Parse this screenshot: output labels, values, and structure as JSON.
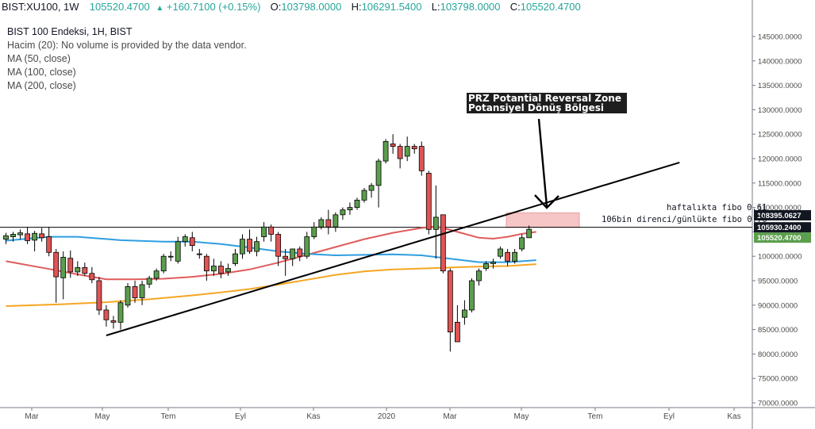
{
  "header": {
    "symbol": "BIST:XU100, 1W",
    "last": "105520.4700",
    "change": "+160.7100 (+0.15%)",
    "open_label": "O:",
    "open": "103798.0000",
    "high_label": "H:",
    "high": "106291.5400",
    "low_label": "L:",
    "low": "103798.0000",
    "close_label": "C:",
    "close": "105520.4700"
  },
  "legend": {
    "title": "BIST 100 Endeksi, 1H, BIST",
    "volume": "Hacim (20): No volume is provided by the data vendor.",
    "ma50": "MA (50, close)",
    "ma100": "MA (100, close)",
    "ma200": "MA (200, close)"
  },
  "annotations": {
    "prz_line1": "PRZ Potantial Reversal Zone",
    "prz_line2": "Potansiyel Dönüş Bölgesi",
    "fibo1": "haftalıkta fibo 0.61",
    "fibo2": "106bin direnci/günlükte fibo 0.76"
  },
  "colors": {
    "up": "#26a69a",
    "up_candle": "#5b9e4d",
    "down_candle": "#e05454",
    "ma50": "#e05c5c",
    "ma100": "#2f9ee0",
    "ma200": "#f5a623",
    "zone": "#f6c5c5"
  },
  "chart_data": {
    "type": "candlestick",
    "y_axis_ticks": [
      "145000.0000",
      "140000.0000",
      "135000.0000",
      "130000.0000",
      "125000.0000",
      "120000.0000",
      "115000.0000",
      "110000.0000",
      "105000.0000",
      "100000.0000",
      "95000.0000",
      "90000.0000",
      "85000.0000",
      "80000.0000",
      "75000.0000",
      "70000.0000"
    ],
    "ylim": [
      69000,
      149000
    ],
    "x_axis_labels": [
      "Mar",
      "May",
      "Tem",
      "Eyl",
      "Kas",
      "2020",
      "Mar",
      "May",
      "Tem",
      "Eyl",
      "Kas"
    ],
    "price_tags": [
      {
        "label": "108395.0627",
        "value": 108395.06,
        "style": "dark"
      },
      {
        "label": "105930.2400",
        "value": 105930.24,
        "style": "dark"
      },
      {
        "label": "105520.4700",
        "value": 105520.47,
        "style": "green"
      }
    ],
    "horizontal_lines": [
      105930.24
    ],
    "zone": {
      "y_low": 105930,
      "y_high": 108900
    },
    "candles": [
      {
        "o": 103500,
        "h": 104800,
        "l": 102500,
        "c": 104200
      },
      {
        "o": 104000,
        "h": 105000,
        "l": 103000,
        "c": 104500
      },
      {
        "o": 104400,
        "h": 105500,
        "l": 103500,
        "c": 104800
      },
      {
        "o": 104600,
        "h": 106000,
        "l": 102500,
        "c": 103200
      },
      {
        "o": 103300,
        "h": 105200,
        "l": 101000,
        "c": 104700
      },
      {
        "o": 104600,
        "h": 105800,
        "l": 103000,
        "c": 103800
      },
      {
        "o": 104000,
        "h": 106000,
        "l": 100000,
        "c": 100800
      },
      {
        "o": 100800,
        "h": 101500,
        "l": 90500,
        "c": 95800
      },
      {
        "o": 95600,
        "h": 101000,
        "l": 91200,
        "c": 99800
      },
      {
        "o": 99600,
        "h": 101200,
        "l": 95600,
        "c": 96800
      },
      {
        "o": 96800,
        "h": 99000,
        "l": 96000,
        "c": 97700
      },
      {
        "o": 97700,
        "h": 98700,
        "l": 96000,
        "c": 96500
      },
      {
        "o": 96500,
        "h": 97800,
        "l": 94500,
        "c": 95200
      },
      {
        "o": 95000,
        "h": 95800,
        "l": 88000,
        "c": 89000
      },
      {
        "o": 89000,
        "h": 90000,
        "l": 85600,
        "c": 87000
      },
      {
        "o": 86800,
        "h": 87800,
        "l": 85200,
        "c": 86500
      },
      {
        "o": 86500,
        "h": 91000,
        "l": 85000,
        "c": 90500
      },
      {
        "o": 90000,
        "h": 94500,
        "l": 89500,
        "c": 93800
      },
      {
        "o": 93800,
        "h": 95000,
        "l": 90500,
        "c": 91500
      },
      {
        "o": 91500,
        "h": 95000,
        "l": 90000,
        "c": 94200
      },
      {
        "o": 94300,
        "h": 96000,
        "l": 93500,
        "c": 95500
      },
      {
        "o": 95500,
        "h": 97500,
        "l": 95000,
        "c": 97000
      },
      {
        "o": 97000,
        "h": 100500,
        "l": 96500,
        "c": 100000
      },
      {
        "o": 100000,
        "h": 101000,
        "l": 99000,
        "c": 100000
      },
      {
        "o": 99000,
        "h": 104000,
        "l": 98500,
        "c": 103000
      },
      {
        "o": 103000,
        "h": 104500,
        "l": 102000,
        "c": 104000
      },
      {
        "o": 103800,
        "h": 105000,
        "l": 101000,
        "c": 102200
      },
      {
        "o": 100500,
        "h": 101500,
        "l": 99500,
        "c": 100500
      },
      {
        "o": 100000,
        "h": 100500,
        "l": 95000,
        "c": 97000
      },
      {
        "o": 97000,
        "h": 99500,
        "l": 96000,
        "c": 98000
      },
      {
        "o": 98000,
        "h": 99000,
        "l": 95500,
        "c": 96500
      },
      {
        "o": 96800,
        "h": 98500,
        "l": 96000,
        "c": 97500
      },
      {
        "o": 98500,
        "h": 101500,
        "l": 98000,
        "c": 100500
      },
      {
        "o": 100500,
        "h": 104500,
        "l": 99500,
        "c": 103500
      },
      {
        "o": 103500,
        "h": 105500,
        "l": 100500,
        "c": 101000
      },
      {
        "o": 101000,
        "h": 104000,
        "l": 100000,
        "c": 103000
      },
      {
        "o": 104000,
        "h": 107000,
        "l": 103000,
        "c": 106000
      },
      {
        "o": 106000,
        "h": 106500,
        "l": 103000,
        "c": 104500
      },
      {
        "o": 104500,
        "h": 105000,
        "l": 98000,
        "c": 100000
      },
      {
        "o": 100000,
        "h": 101500,
        "l": 96000,
        "c": 99500
      },
      {
        "o": 99500,
        "h": 101500,
        "l": 98000,
        "c": 101500
      },
      {
        "o": 101500,
        "h": 102000,
        "l": 99000,
        "c": 100000
      },
      {
        "o": 100000,
        "h": 105000,
        "l": 99500,
        "c": 104000
      },
      {
        "o": 104000,
        "h": 107000,
        "l": 103500,
        "c": 106000
      },
      {
        "o": 106000,
        "h": 108000,
        "l": 105500,
        "c": 107500
      },
      {
        "o": 107500,
        "h": 109500,
        "l": 104500,
        "c": 106000
      },
      {
        "o": 106000,
        "h": 109000,
        "l": 105000,
        "c": 108500
      },
      {
        "o": 108500,
        "h": 110000,
        "l": 107500,
        "c": 109500
      },
      {
        "o": 109500,
        "h": 111000,
        "l": 108500,
        "c": 110000
      },
      {
        "o": 110000,
        "h": 112000,
        "l": 109500,
        "c": 111500
      },
      {
        "o": 111500,
        "h": 114000,
        "l": 111000,
        "c": 113500
      },
      {
        "o": 113500,
        "h": 115000,
        "l": 112000,
        "c": 114500
      },
      {
        "o": 114500,
        "h": 120000,
        "l": 110000,
        "c": 119500
      },
      {
        "o": 119500,
        "h": 124000,
        "l": 119000,
        "c": 123500
      },
      {
        "o": 123000,
        "h": 125000,
        "l": 121000,
        "c": 122500
      },
      {
        "o": 122500,
        "h": 123000,
        "l": 118000,
        "c": 120000
      },
      {
        "o": 120500,
        "h": 124500,
        "l": 119500,
        "c": 122500
      },
      {
        "o": 122500,
        "h": 123000,
        "l": 121000,
        "c": 122000
      },
      {
        "o": 122500,
        "h": 123500,
        "l": 116500,
        "c": 117500
      },
      {
        "o": 117000,
        "h": 117500,
        "l": 104500,
        "c": 105500
      },
      {
        "o": 105500,
        "h": 114500,
        "l": 99500,
        "c": 108000
      },
      {
        "o": 108500,
        "h": 108500,
        "l": 96500,
        "c": 97000
      },
      {
        "o": 97000,
        "h": 97500,
        "l": 80500,
        "c": 84500
      },
      {
        "o": 86500,
        "h": 90000,
        "l": 82500,
        "c": 82500
      },
      {
        "o": 87500,
        "h": 91000,
        "l": 86000,
        "c": 89000
      },
      {
        "o": 89000,
        "h": 95500,
        "l": 88500,
        "c": 95000
      },
      {
        "o": 95000,
        "h": 97500,
        "l": 94000,
        "c": 97000
      },
      {
        "o": 97500,
        "h": 99000,
        "l": 97000,
        "c": 98500
      },
      {
        "o": 98500,
        "h": 99500,
        "l": 97500,
        "c": 98800
      },
      {
        "o": 100000,
        "h": 102000,
        "l": 99500,
        "c": 101500
      },
      {
        "o": 100800,
        "h": 101500,
        "l": 98000,
        "c": 99000
      },
      {
        "o": 99000,
        "h": 101500,
        "l": 98500,
        "c": 100800
      },
      {
        "o": 101500,
        "h": 104500,
        "l": 101000,
        "c": 103800
      },
      {
        "o": 103800,
        "h": 106300,
        "l": 103800,
        "c": 105520
      }
    ],
    "series": [
      {
        "name": "MA (50, close)",
        "points": [
          [
            0,
            99000
          ],
          [
            6,
            97400
          ],
          [
            10,
            96300
          ],
          [
            14,
            95300
          ],
          [
            18,
            95300
          ],
          [
            22,
            95400
          ],
          [
            26,
            95800
          ],
          [
            30,
            96400
          ],
          [
            34,
            97300
          ],
          [
            38,
            98700
          ],
          [
            42,
            100300
          ],
          [
            46,
            101900
          ],
          [
            50,
            103500
          ],
          [
            54,
            104800
          ],
          [
            58,
            105800
          ],
          [
            60,
            106100
          ],
          [
            62,
            105400
          ],
          [
            64,
            104600
          ],
          [
            66,
            103800
          ],
          [
            68,
            103600
          ],
          [
            70,
            104000
          ],
          [
            72,
            104600
          ],
          [
            74,
            105000
          ]
        ]
      },
      {
        "name": "MA (100, close)",
        "points": [
          [
            0,
            103200
          ],
          [
            6,
            104000
          ],
          [
            10,
            104000
          ],
          [
            16,
            103300
          ],
          [
            22,
            103000
          ],
          [
            26,
            103000
          ],
          [
            30,
            102500
          ],
          [
            34,
            101800
          ],
          [
            38,
            101000
          ],
          [
            42,
            100500
          ],
          [
            46,
            100200
          ],
          [
            50,
            100300
          ],
          [
            54,
            100400
          ],
          [
            58,
            100200
          ],
          [
            62,
            99500
          ],
          [
            66,
            98800
          ],
          [
            70,
            98800
          ],
          [
            74,
            99200
          ]
        ]
      },
      {
        "name": "MA (200, close)",
        "points": [
          [
            0,
            89800
          ],
          [
            8,
            90200
          ],
          [
            14,
            90600
          ],
          [
            20,
            91200
          ],
          [
            26,
            92000
          ],
          [
            30,
            92600
          ],
          [
            34,
            93300
          ],
          [
            38,
            94200
          ],
          [
            42,
            95200
          ],
          [
            46,
            96200
          ],
          [
            50,
            96900
          ],
          [
            54,
            97300
          ],
          [
            58,
            97500
          ],
          [
            62,
            97700
          ],
          [
            66,
            97900
          ],
          [
            70,
            98000
          ],
          [
            74,
            98400
          ]
        ]
      }
    ],
    "trendline": {
      "start": [
        14,
        83800
      ],
      "end": [
        94,
        119200
      ]
    },
    "axis": {
      "grid": false,
      "y_position": "right"
    }
  }
}
